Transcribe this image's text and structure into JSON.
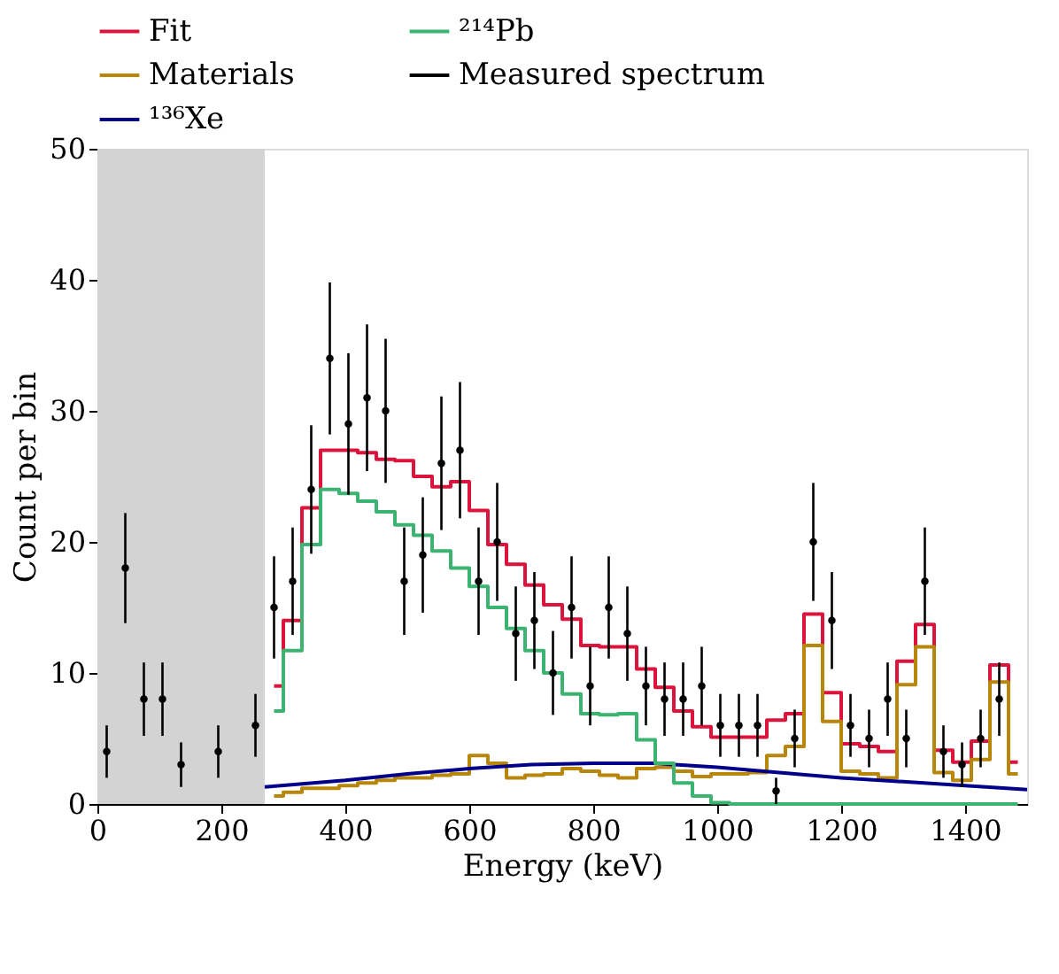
{
  "chart_data": {
    "type": "step",
    "xlabel": "Energy (keV)",
    "ylabel": "Count per bin",
    "xlim": [
      0,
      1500
    ],
    "ylim": [
      0,
      50
    ],
    "xticks": [
      0,
      200,
      400,
      600,
      800,
      1000,
      1200,
      1400
    ],
    "yticks": [
      0,
      10,
      20,
      30,
      40,
      50
    ],
    "grid": false,
    "legend": "top",
    "bands": [
      {
        "axis": "x",
        "from": 0,
        "to": 270,
        "color": "#d3d3d3"
      }
    ],
    "series": [
      {
        "name": "Fit",
        "color": "#dc143c",
        "x": [
          285,
          315,
          345,
          375,
          405,
          435,
          465,
          495,
          525,
          555,
          585,
          615,
          645,
          675,
          705,
          735,
          765,
          795,
          825,
          855,
          885,
          915,
          945,
          975,
          1005,
          1035,
          1065,
          1095,
          1125,
          1155,
          1185,
          1215,
          1245,
          1275,
          1305,
          1335,
          1365,
          1395,
          1425,
          1455,
          1485
        ],
        "values": [
          9,
          14,
          22.6,
          27,
          27,
          26.8,
          26.3,
          26.2,
          25,
          24.2,
          24.6,
          22.4,
          19.8,
          18.3,
          16.7,
          15.2,
          14.1,
          12.1,
          12,
          12,
          10.3,
          8.9,
          7.1,
          5.9,
          5.1,
          5.1,
          5.1,
          6.4,
          6.9,
          14.5,
          8.5,
          4.6,
          4.4,
          4,
          10.9,
          13.7,
          4.1,
          3.2,
          4.8,
          10.6,
          3.2
        ]
      },
      {
        "name": "Materials",
        "color": "#b8860b",
        "x": [
          285,
          315,
          345,
          375,
          405,
          435,
          465,
          495,
          525,
          555,
          585,
          615,
          645,
          675,
          705,
          735,
          765,
          795,
          825,
          855,
          885,
          915,
          945,
          975,
          1005,
          1035,
          1065,
          1095,
          1125,
          1155,
          1185,
          1215,
          1245,
          1275,
          1305,
          1335,
          1365,
          1395,
          1425,
          1455,
          1485
        ],
        "values": [
          0.6,
          0.9,
          1.2,
          1.2,
          1.4,
          1.6,
          1.8,
          2,
          2,
          2.2,
          2.3,
          3.7,
          3.1,
          2,
          2.2,
          2.3,
          2.7,
          2.5,
          2.2,
          2,
          2.7,
          2.8,
          2.5,
          2.1,
          2.3,
          2.3,
          2.4,
          3.7,
          4.4,
          12.1,
          6.3,
          2.5,
          2.3,
          2,
          9.1,
          12,
          2.4,
          1.8,
          3.4,
          9.3,
          2.3
        ]
      },
      {
        "name": "¹³⁶Xe",
        "type": "line",
        "color": "#00008b",
        "x": [
          270,
          400,
          500,
          600,
          700,
          800,
          900,
          1000,
          1100,
          1200,
          1300,
          1400,
          1500
        ],
        "values": [
          1.3,
          1.8,
          2.3,
          2.7,
          3.0,
          3.1,
          3.1,
          2.8,
          2.4,
          2.0,
          1.7,
          1.4,
          1.1
        ]
      },
      {
        "name": "²¹⁴Pb",
        "color": "#3cb371",
        "x": [
          285,
          315,
          345,
          375,
          405,
          435,
          465,
          495,
          525,
          555,
          585,
          615,
          645,
          675,
          705,
          735,
          765,
          795,
          825,
          855,
          885,
          915,
          945,
          975,
          1005,
          1035,
          1065,
          1095,
          1125,
          1155,
          1185,
          1215,
          1245,
          1275,
          1305,
          1335,
          1365,
          1395,
          1425,
          1455,
          1485
        ],
        "values": [
          7.1,
          11.7,
          19.8,
          24,
          23.7,
          23.1,
          22.3,
          21.3,
          20.5,
          19.3,
          18,
          16.6,
          15,
          13.4,
          11.7,
          10,
          8.4,
          6.9,
          6.8,
          6.9,
          4.9,
          3.1,
          1.6,
          0.6,
          0.1,
          0,
          0,
          0,
          0,
          0,
          0,
          0,
          0,
          0,
          0,
          0,
          0,
          0,
          0,
          0,
          0
        ]
      },
      {
        "name": "Measured spectrum",
        "type": "scatter",
        "marker": "circle",
        "color": "#000000",
        "x": [
          15,
          45,
          75,
          105,
          135,
          165,
          195,
          225,
          255,
          285,
          315,
          345,
          375,
          405,
          435,
          465,
          495,
          525,
          555,
          585,
          615,
          645,
          675,
          705,
          735,
          765,
          795,
          825,
          855,
          885,
          915,
          945,
          975,
          1005,
          1035,
          1065,
          1095,
          1125,
          1155,
          1185,
          1215,
          1245,
          1275,
          1305,
          1335,
          1365,
          1395,
          1425,
          1455
        ],
        "values": [
          4,
          18,
          8,
          8,
          3,
          null,
          4,
          null,
          6,
          15,
          17,
          24,
          34,
          29,
          31,
          30,
          17,
          19,
          26,
          27,
          17,
          20,
          13,
          14,
          10,
          15,
          9,
          15,
          13,
          9,
          8,
          8,
          9,
          6,
          6,
          6,
          1,
          5,
          20,
          14,
          6,
          5,
          8,
          5,
          17,
          4,
          3,
          5,
          8
        ],
        "errors": [
          2,
          4.2,
          2.8,
          2.8,
          1.7,
          null,
          2,
          null,
          2.4,
          3.9,
          4.1,
          4.9,
          5.8,
          5.4,
          5.6,
          5.5,
          4.1,
          4.4,
          5.1,
          5.2,
          4.1,
          4.5,
          3.6,
          3.7,
          3.2,
          3.9,
          3,
          3.9,
          3.6,
          3,
          2.8,
          2.8,
          3,
          2.4,
          2.4,
          2.4,
          1,
          2.2,
          4.5,
          3.7,
          2.4,
          2.2,
          2.8,
          2.2,
          4.1,
          2,
          1.7,
          2.2,
          2.8
        ]
      }
    ]
  }
}
